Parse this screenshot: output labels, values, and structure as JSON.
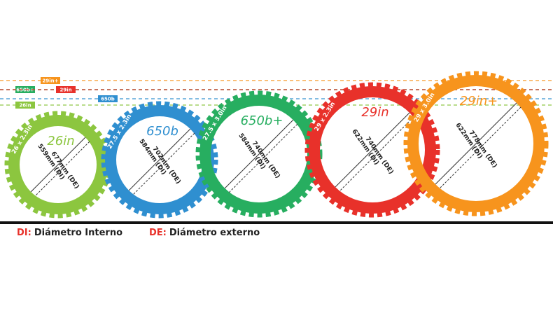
{
  "wheels": [
    {
      "name": "26in",
      "tire": "26 x 2.3in",
      "di": "559mm (DI)",
      "de": "677mm (DE)",
      "color": "#8cc63f"
    },
    {
      "name": "650b",
      "tire": "27.5 x 2.3in",
      "di": "584mm (DI)",
      "de": "702mm (DE)",
      "color": "#2f8fd0"
    },
    {
      "name": "650b+",
      "tire": "27.5 x 3.0in",
      "di": "584mm (DI)",
      "de": "740mm (DE)",
      "color": "#27ae60"
    },
    {
      "name": "29in",
      "tire": "29 x 2.3in",
      "di": "622mm (DI)",
      "de": "740mm (DE)",
      "color": "#e8312a"
    },
    {
      "name": "29in+",
      "tire": "29 x 3.0in",
      "di": "622mm (DI)",
      "de": "778mm (DE)",
      "color": "#f7941d"
    }
  ],
  "guides": [
    {
      "label": "29in+",
      "color": "#f7941d"
    },
    {
      "label": "650b+",
      "color": "#27ae60"
    },
    {
      "label": "29in",
      "color": "#e8312a"
    },
    {
      "label": "650b",
      "color": "#2f8fd0"
    },
    {
      "label": "26in",
      "color": "#8cc63f"
    }
  ],
  "legend": [
    {
      "key": "DI:",
      "text": "Diámetro Interno"
    },
    {
      "key": "DE:",
      "text": "Diámetro externo"
    }
  ]
}
